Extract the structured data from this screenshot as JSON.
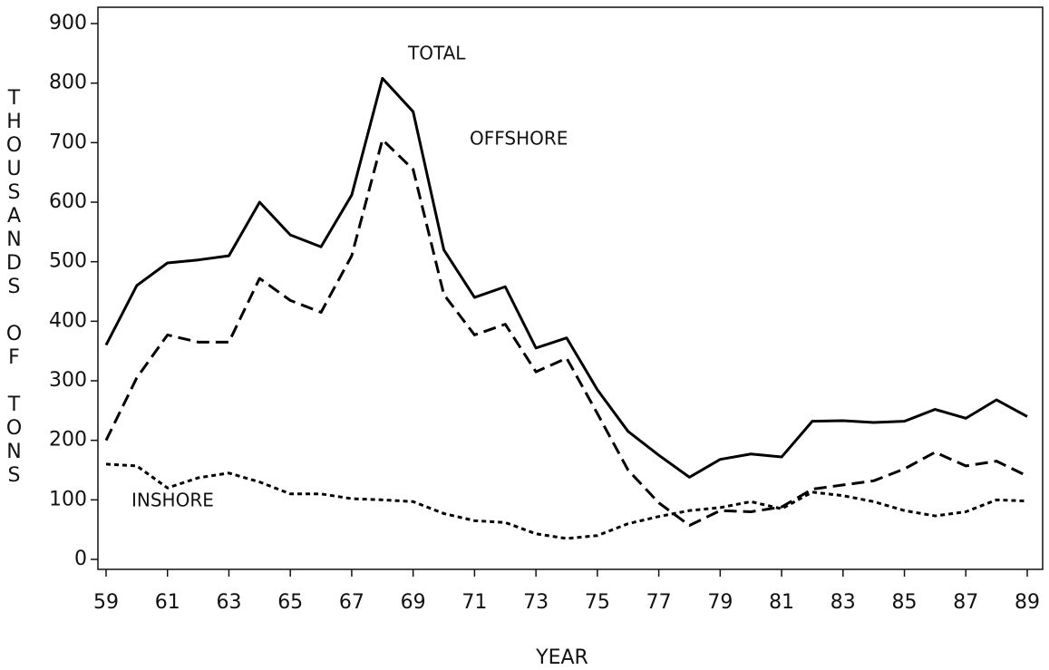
{
  "chart_data": {
    "type": "line",
    "y_label": "THOUSANDS OF TONS",
    "x_label": "YEAR",
    "x": [
      59,
      60,
      61,
      62,
      63,
      64,
      65,
      66,
      67,
      68,
      69,
      70,
      71,
      72,
      73,
      74,
      75,
      76,
      77,
      78,
      79,
      80,
      81,
      82,
      83,
      84,
      85,
      86,
      87,
      88,
      89
    ],
    "series": [
      {
        "name": "TOTAL",
        "color": "#000000",
        "dash": "solid",
        "values": [
          360,
          460,
          498,
          503,
          510,
          600,
          545,
          525,
          612,
          808,
          752,
          520,
          440,
          458,
          355,
          372,
          285,
          215,
          175,
          138,
          168,
          177,
          172,
          232,
          233,
          230,
          232,
          252,
          237,
          268,
          240
        ]
      },
      {
        "name": "OFFSHORE",
        "color": "#000000",
        "dash": "dashed",
        "values": [
          200,
          305,
          377,
          365,
          365,
          472,
          435,
          415,
          510,
          705,
          655,
          445,
          377,
          395,
          315,
          338,
          245,
          150,
          95,
          57,
          82,
          80,
          88,
          118,
          125,
          132,
          152,
          180,
          157,
          165,
          140
        ]
      },
      {
        "name": "INSHORE",
        "color": "#000000",
        "dash": "dotted",
        "values": [
          160,
          157,
          120,
          137,
          145,
          130,
          110,
          110,
          102,
          100,
          97,
          77,
          65,
          62,
          43,
          35,
          40,
          60,
          72,
          82,
          87,
          97,
          85,
          113,
          107,
          97,
          82,
          73,
          80,
          100,
          98
        ]
      }
    ],
    "xlim": [
      59,
      89
    ],
    "xticks": [
      59,
      61,
      63,
      65,
      67,
      69,
      71,
      73,
      75,
      77,
      79,
      81,
      83,
      85,
      87,
      89
    ],
    "ylim": [
      0,
      900
    ],
    "yticks": [
      0,
      100,
      200,
      300,
      400,
      500,
      600,
      700,
      800,
      900
    ]
  }
}
